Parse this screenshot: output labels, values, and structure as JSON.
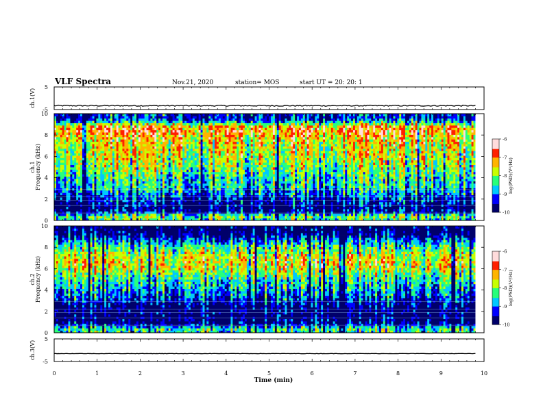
{
  "header": {
    "title": "VLF Spectra",
    "date": "Nov.21, 2020",
    "station": "station= MOS",
    "start": "start  UT =   20: 20: 1"
  },
  "chart_data": [
    {
      "type": "line",
      "name": "ch1-waveform",
      "ylabel": "ch.1(V)",
      "ylim": [
        -5,
        5
      ],
      "yticks": [
        "5",
        "-5"
      ],
      "x": [
        0,
        9.8
      ],
      "values": [
        -3.3,
        -3.3
      ]
    },
    {
      "type": "heatmap",
      "name": "ch1-spectrogram",
      "ylabel_line1": "ch.1",
      "ylabel_line2": "Frequency  (kHz)",
      "ylim": [
        0,
        10
      ],
      "yticks": [
        "0",
        "2",
        "4",
        "6",
        "8",
        "10"
      ],
      "xlim": [
        0,
        9.8
      ],
      "band_profile": [
        [
          0,
          -8.5
        ],
        [
          0.4,
          -8.0
        ],
        [
          0.8,
          -9.6
        ],
        [
          1.2,
          -9.8
        ],
        [
          1.6,
          -9.6
        ],
        [
          2.0,
          -9.4
        ],
        [
          2.5,
          -9.0
        ],
        [
          3.0,
          -8.6
        ],
        [
          4.0,
          -8.4
        ],
        [
          5.0,
          -8.0
        ],
        [
          6.0,
          -7.7
        ],
        [
          7.0,
          -7.6
        ],
        [
          7.8,
          -7.3
        ],
        [
          8.4,
          -7.0
        ],
        [
          8.8,
          -7.2
        ],
        [
          9.2,
          -8.6
        ],
        [
          9.6,
          -9.4
        ],
        [
          10,
          -9.2
        ]
      ],
      "colorbar": {
        "label": "log(PSD)(V²/Hz)",
        "ticks": [
          "-6",
          "-7",
          "-8",
          "-9",
          "-10"
        ],
        "range": [
          -10,
          -6
        ]
      }
    },
    {
      "type": "heatmap",
      "name": "ch2-spectrogram",
      "ylabel_line1": "ch.2",
      "ylabel_line2": "Frequency  (kHz)",
      "ylim": [
        0,
        10
      ],
      "yticks": [
        "0",
        "2",
        "4",
        "6",
        "8",
        "10"
      ],
      "xlim": [
        0,
        9.8
      ],
      "band_profile": [
        [
          0,
          -8.5
        ],
        [
          0.4,
          -8.2
        ],
        [
          0.8,
          -9.5
        ],
        [
          1.2,
          -9.9
        ],
        [
          1.6,
          -9.9
        ],
        [
          2.0,
          -9.9
        ],
        [
          2.5,
          -9.7
        ],
        [
          3.0,
          -9.3
        ],
        [
          4.0,
          -8.8
        ],
        [
          5.0,
          -8.3
        ],
        [
          5.8,
          -7.8
        ],
        [
          6.5,
          -7.4
        ],
        [
          7.2,
          -7.6
        ],
        [
          8.0,
          -8.2
        ],
        [
          8.6,
          -8.8
        ],
        [
          9.2,
          -9.7
        ],
        [
          9.6,
          -9.9
        ],
        [
          10,
          -9.9
        ]
      ],
      "colorbar": {
        "label": "log(PSD)(V²/Hz)",
        "ticks": [
          "-6",
          "-7",
          "-8",
          "-9",
          "-10"
        ],
        "range": [
          -10,
          -6
        ]
      }
    },
    {
      "type": "line",
      "name": "ch3-waveform",
      "ylabel": "ch.3(V)",
      "ylim": [
        -5,
        5
      ],
      "yticks": [
        "5",
        "-5"
      ],
      "x": [
        0,
        9.8
      ],
      "values": [
        -1.5,
        -1.5
      ]
    }
  ],
  "xaxis": {
    "label": "Time  (min)",
    "range": [
      0,
      10
    ],
    "ticks": [
      "0",
      "1",
      "2",
      "3",
      "4",
      "5",
      "6",
      "7",
      "8",
      "9",
      "10"
    ]
  },
  "colors": {
    "cmap": [
      "#00006a",
      "#0000ff",
      "#00c8ff",
      "#28ff7a",
      "#c8ff00",
      "#ffb400",
      "#ff2000",
      "#ffdcdc"
    ]
  }
}
